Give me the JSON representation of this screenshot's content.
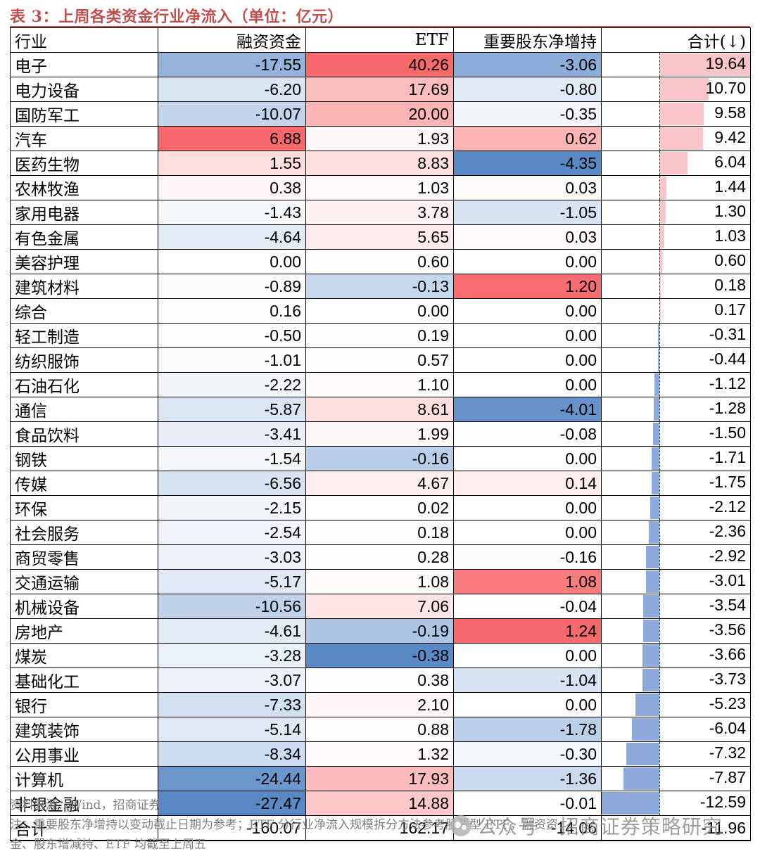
{
  "title": "表 3：上周各类资金行业净流入（单位：亿元）",
  "headers": [
    "行业",
    "融资资金",
    "ETF",
    "重要股东净增持",
    "合计(↓)"
  ],
  "colors": {
    "title": "#C0504D",
    "pos_max": "#F8696B",
    "neg_max": "#5A8AC6",
    "neutral": "#FFFFFF",
    "bar_pos": "#F9C5CB",
    "bar_neg": "#8EAADB"
  },
  "rows": [
    {
      "name": "电子",
      "margin": "-17.55",
      "etf": "40.26",
      "holder": "-3.06",
      "total": "19.64"
    },
    {
      "name": "电力设备",
      "margin": "-6.20",
      "etf": "17.69",
      "holder": "-0.80",
      "total": "10.70"
    },
    {
      "name": "国防军工",
      "margin": "-10.07",
      "etf": "20.00",
      "holder": "-0.35",
      "total": "9.58"
    },
    {
      "name": "汽车",
      "margin": "6.88",
      "etf": "1.93",
      "holder": "0.62",
      "total": "9.42"
    },
    {
      "name": "医药生物",
      "margin": "1.55",
      "etf": "8.83",
      "holder": "-4.35",
      "total": "6.04"
    },
    {
      "name": "农林牧渔",
      "margin": "0.38",
      "etf": "1.03",
      "holder": "0.03",
      "total": "1.44"
    },
    {
      "name": "家用电器",
      "margin": "-1.43",
      "etf": "3.78",
      "holder": "-1.05",
      "total": "1.30"
    },
    {
      "name": "有色金属",
      "margin": "-4.64",
      "etf": "5.65",
      "holder": "0.03",
      "total": "1.03"
    },
    {
      "name": "美容护理",
      "margin": "0.00",
      "etf": "0.60",
      "holder": "0.00",
      "total": "0.60"
    },
    {
      "name": "建筑材料",
      "margin": "-0.89",
      "etf": "-0.13",
      "holder": "1.20",
      "total": "0.18"
    },
    {
      "name": "综合",
      "margin": "0.16",
      "etf": "0.00",
      "holder": "0.00",
      "total": "0.17"
    },
    {
      "name": "轻工制造",
      "margin": "-0.50",
      "etf": "0.19",
      "holder": "0.00",
      "total": "-0.31"
    },
    {
      "name": "纺织服饰",
      "margin": "-1.01",
      "etf": "0.57",
      "holder": "0.00",
      "total": "-0.44"
    },
    {
      "name": "石油石化",
      "margin": "-2.22",
      "etf": "1.10",
      "holder": "0.00",
      "total": "-1.12"
    },
    {
      "name": "通信",
      "margin": "-5.87",
      "etf": "8.61",
      "holder": "-4.01",
      "total": "-1.28"
    },
    {
      "name": "食品饮料",
      "margin": "-3.41",
      "etf": "1.99",
      "holder": "-0.08",
      "total": "-1.50"
    },
    {
      "name": "钢铁",
      "margin": "-1.54",
      "etf": "-0.16",
      "holder": "0.00",
      "total": "-1.71"
    },
    {
      "name": "传媒",
      "margin": "-6.56",
      "etf": "4.67",
      "holder": "0.14",
      "total": "-1.75"
    },
    {
      "name": "环保",
      "margin": "-2.15",
      "etf": "0.02",
      "holder": "0.00",
      "total": "-2.12"
    },
    {
      "name": "社会服务",
      "margin": "-2.54",
      "etf": "0.18",
      "holder": "0.00",
      "total": "-2.36"
    },
    {
      "name": "商贸零售",
      "margin": "-3.03",
      "etf": "0.28",
      "holder": "-0.16",
      "total": "-2.92"
    },
    {
      "name": "交通运输",
      "margin": "-5.17",
      "etf": "1.08",
      "holder": "1.08",
      "total": "-3.01"
    },
    {
      "name": "机械设备",
      "margin": "-10.56",
      "etf": "7.06",
      "holder": "-0.04",
      "total": "-3.54"
    },
    {
      "name": "房地产",
      "margin": "-4.61",
      "etf": "-0.19",
      "holder": "1.24",
      "total": "-3.56"
    },
    {
      "name": "煤炭",
      "margin": "-3.28",
      "etf": "-0.38",
      "holder": "0.00",
      "total": "-3.66"
    },
    {
      "name": "基础化工",
      "margin": "-3.07",
      "etf": "0.38",
      "holder": "-1.04",
      "total": "-3.73"
    },
    {
      "name": "银行",
      "margin": "-7.33",
      "etf": "2.10",
      "holder": "0.00",
      "total": "-5.23"
    },
    {
      "name": "建筑装饰",
      "margin": "-5.14",
      "etf": "0.88",
      "holder": "-1.78",
      "total": "-6.04"
    },
    {
      "name": "公用事业",
      "margin": "-8.34",
      "etf": "1.32",
      "holder": "-0.30",
      "total": "-7.32"
    },
    {
      "name": "计算机",
      "margin": "-24.44",
      "etf": "17.93",
      "holder": "-1.36",
      "total": "-7.87"
    },
    {
      "name": "非银金融",
      "margin": "-27.47",
      "etf": "14.88",
      "holder": "-0.01",
      "total": "-12.59"
    }
  ],
  "total_row": {
    "name": "合计",
    "margin": "-160.07",
    "etf": "162.17",
    "holder": "-14.06",
    "total": "-11.96"
  },
  "notes": {
    "source": "资料来源：Wind，招商证券",
    "note_line1": "注：重要股东净增持以变动截止日期为参考；ETF 分行业净流入规模拆分方法参考股票型 ETF，融资资",
    "note_line2": "金、股东增减持、ETF 均截至上周五"
  },
  "watermark": {
    "icon": "wechat-icon",
    "text": "公众号 · 招商证券策略研究"
  }
}
